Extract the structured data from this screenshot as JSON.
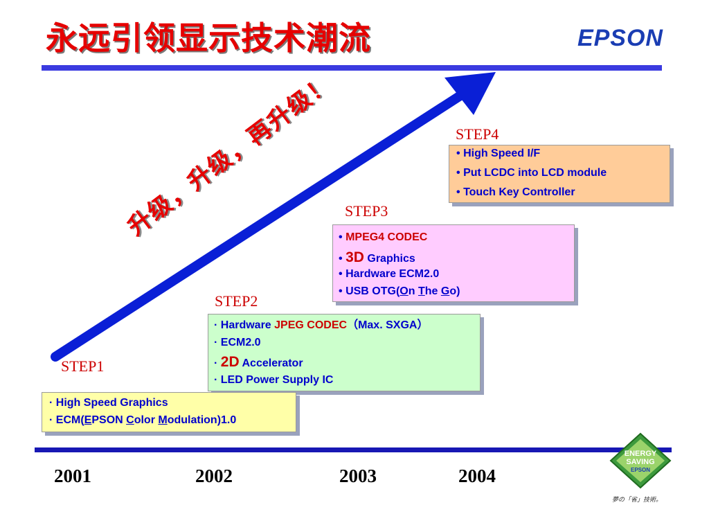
{
  "header": {
    "title": "永远引领显示技术潮流",
    "logo": "EPSON"
  },
  "arrow": {
    "text": "升级，升级，再升级！",
    "color": "#0a1fd6"
  },
  "steps": [
    {
      "label": "STEP1",
      "bg": "#ffffa8",
      "items": [
        {
          "bullet": "·",
          "text": "High Speed Graphics"
        },
        {
          "bullet": "·",
          "prefix": "ECM(",
          "u1": "E",
          "mid1": "PSON ",
          "u2": "C",
          "mid2": "olor ",
          "u3": "M",
          "suffix": "odulation)1.0"
        }
      ]
    },
    {
      "label": "STEP2",
      "bg": "#ccffcc",
      "items": [
        {
          "bullet": "·",
          "text": "Hardware ",
          "red": "JPEG CODEC",
          "suffix": "（Max. SXGA）"
        },
        {
          "bullet": "·",
          "text": "ECM2.0"
        },
        {
          "bullet": "·",
          "red": "2D",
          "suffix": "Accelerator"
        },
        {
          "bullet": "·",
          "text": "LED Power Supply IC"
        }
      ]
    },
    {
      "label": "STEP3",
      "bg": "#ffccff",
      "items": [
        {
          "bullet": "•",
          "red": "MPEG4 CODEC"
        },
        {
          "bullet": "•",
          "red": "3D",
          "suffix": "Graphics"
        },
        {
          "bullet": "•",
          "text": "Hardware ECM2.0"
        },
        {
          "bullet": "•",
          "prefix": "USB OTG(",
          "u1": "O",
          "mid1": "n ",
          "u2": "T",
          "mid2": "he ",
          "u3": "G",
          "suffix": "o)"
        }
      ]
    },
    {
      "label": "STEP4",
      "bg": "#ffcc99",
      "items": [
        {
          "bullet": "•",
          "text": "High Speed I/F"
        },
        {
          "bullet": "•",
          "text": "Put LCDC into LCD module"
        },
        {
          "bullet": "•",
          "text": "Touch Key Controller"
        }
      ]
    }
  ],
  "timeline": {
    "years": [
      "2001",
      "2002",
      "2003",
      "2004"
    ]
  },
  "badge": {
    "line1": "ENERGY",
    "line2": "SAVING",
    "line3": "EPSON",
    "motto": "夢の「省」技術。"
  }
}
